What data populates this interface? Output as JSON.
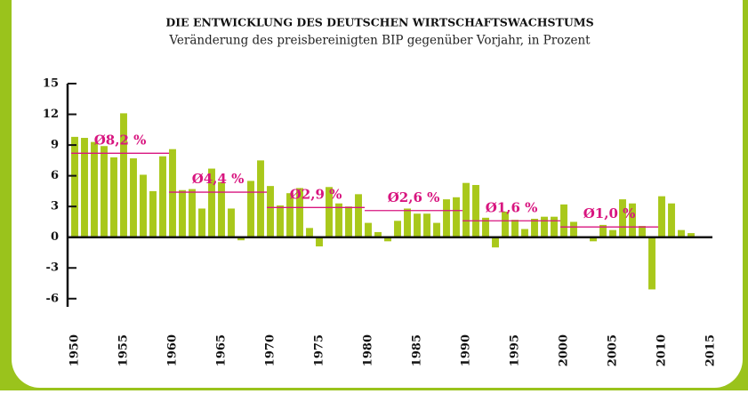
{
  "chart_data": {
    "type": "bar",
    "title": "DIE ENTWICKLUNG DES DEUTSCHEN WIRTSCHAFTSWACHSTUMS",
    "subtitle": "Veränderung des preisbereinigten BIP gegenüber Vorjahr, in Prozent",
    "x": [
      1950,
      1951,
      1952,
      1953,
      1954,
      1955,
      1956,
      1957,
      1958,
      1959,
      1960,
      1961,
      1962,
      1963,
      1964,
      1965,
      1966,
      1967,
      1968,
      1969,
      1970,
      1971,
      1972,
      1973,
      1974,
      1975,
      1976,
      1977,
      1978,
      1979,
      1980,
      1981,
      1982,
      1983,
      1984,
      1985,
      1986,
      1987,
      1988,
      1989,
      1990,
      1991,
      1992,
      1993,
      1994,
      1995,
      1996,
      1997,
      1998,
      1999,
      2000,
      2001,
      2002,
      2003,
      2004,
      2005,
      2006,
      2007,
      2008,
      2009,
      2010,
      2011,
      2012,
      2013
    ],
    "values": [
      9.8,
      9.7,
      9.3,
      8.9,
      7.8,
      12.1,
      7.7,
      6.1,
      4.5,
      7.9,
      8.6,
      4.6,
      4.7,
      2.8,
      6.7,
      5.4,
      2.8,
      -0.3,
      5.5,
      7.5,
      5.0,
      3.1,
      4.3,
      4.8,
      0.9,
      -0.9,
      4.9,
      3.3,
      3.0,
      4.2,
      1.4,
      0.5,
      -0.4,
      1.6,
      2.8,
      2.3,
      2.3,
      1.4,
      3.7,
      3.9,
      5.3,
      5.1,
      1.9,
      -1.0,
      2.5,
      1.7,
      0.8,
      1.8,
      2.0,
      2.0,
      3.2,
      1.5,
      0.0,
      -0.4,
      1.2,
      0.7,
      3.7,
      3.3,
      1.1,
      -5.1,
      4.0,
      3.3,
      0.7,
      0.4
    ],
    "color": "#a9c81b",
    "averages": [
      {
        "label": "Ø8,2 %",
        "value": 8.2,
        "start": 1950,
        "end": 1960
      },
      {
        "label": "Ø4,4 %",
        "value": 4.4,
        "start": 1960,
        "end": 1970
      },
      {
        "label": "Ø2,9 %",
        "value": 2.9,
        "start": 1970,
        "end": 1980
      },
      {
        "label": "Ø2,6 %",
        "value": 2.6,
        "start": 1980,
        "end": 1990
      },
      {
        "label": "Ø1,6 %",
        "value": 1.6,
        "start": 1990,
        "end": 2000
      },
      {
        "label": "Ø1,0 %",
        "value": 1.0,
        "start": 2000,
        "end": 2010
      }
    ],
    "average_color": "#d8157f",
    "xlim": [
      1950,
      2015
    ],
    "xticks": [
      1950,
      1955,
      1960,
      1965,
      1970,
      1975,
      1980,
      1985,
      1990,
      1995,
      2000,
      2005,
      2010,
      2015
    ],
    "ylim": [
      -6.8,
      15
    ],
    "yticks": [
      15,
      12,
      9,
      6,
      3,
      0,
      -3,
      -6
    ]
  }
}
